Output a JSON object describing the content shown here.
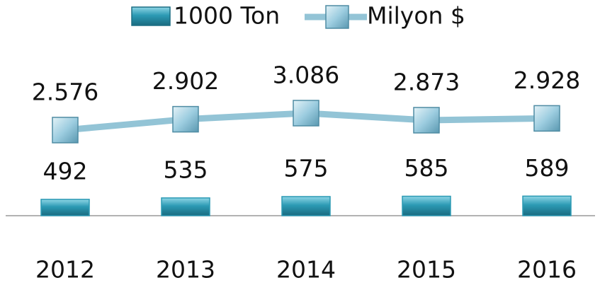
{
  "chart_data": {
    "type": "bar",
    "categories": [
      "2012",
      "2013",
      "2014",
      "2015",
      "2016"
    ],
    "series": [
      {
        "name": "1000 Ton",
        "type": "bar",
        "color": "#2c9ab4",
        "values": [
          492,
          535,
          575,
          585,
          589
        ],
        "value_labels": [
          "492",
          "535",
          "575",
          "585",
          "589"
        ]
      },
      {
        "name": "Milyon $",
        "type": "line",
        "color": "#93c4d6",
        "values": [
          2576,
          2902,
          3086,
          2873,
          2928
        ],
        "value_labels": [
          "2.576",
          "2.902",
          "3.086",
          "2.873",
          "2.928"
        ]
      }
    ],
    "ylim": [
      0,
      6000
    ],
    "legend": "top"
  }
}
